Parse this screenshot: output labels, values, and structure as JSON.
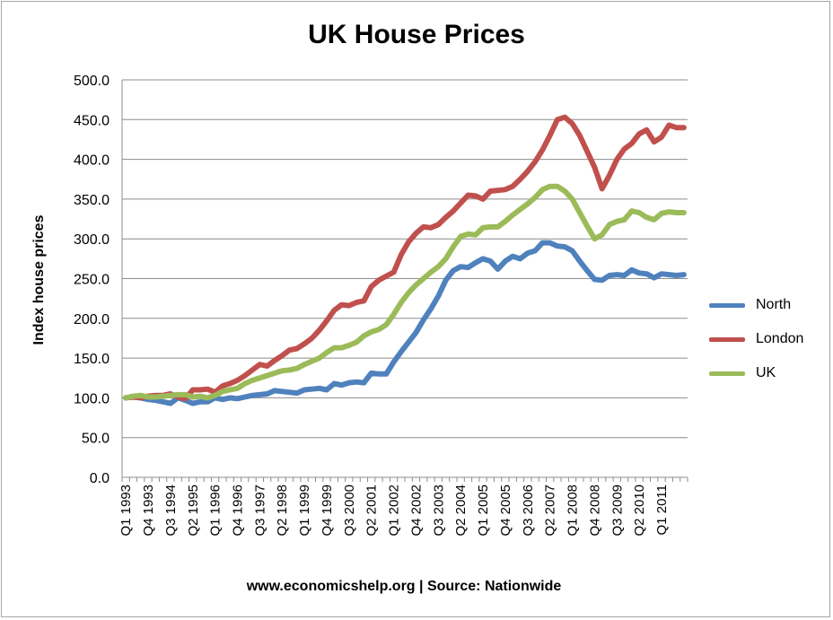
{
  "chart_data": {
    "type": "line",
    "title": "UK House Prices",
    "ylabel": "Index house prices",
    "xlabel": "www.economicshelp.org | Source: Nationwide",
    "ylim": [
      0,
      500
    ],
    "yticks": [
      "0.0",
      "50.0",
      "100.0",
      "150.0",
      "200.0",
      "250.0",
      "300.0",
      "350.0",
      "400.0",
      "450.0",
      "500.0"
    ],
    "grid": true,
    "legend": "right",
    "x": [
      "Q1 1993",
      "Q2 1993",
      "Q3 1993",
      "Q4 1993",
      "Q1 1994",
      "Q2 1994",
      "Q3 1994",
      "Q4 1994",
      "Q1 1995",
      "Q2 1995",
      "Q3 1995",
      "Q4 1995",
      "Q1 1996",
      "Q2 1996",
      "Q3 1996",
      "Q4 1996",
      "Q1 1997",
      "Q2 1997",
      "Q3 1997",
      "Q4 1997",
      "Q1 1998",
      "Q2 1998",
      "Q3 1998",
      "Q4 1998",
      "Q1 1999",
      "Q2 1999",
      "Q3 1999",
      "Q4 1999",
      "Q1 2000",
      "Q2 2000",
      "Q3 2000",
      "Q4 2000",
      "Q1 2001",
      "Q2 2001",
      "Q3 2001",
      "Q4 2001",
      "Q1 2002",
      "Q2 2002",
      "Q3 2002",
      "Q4 2002",
      "Q1 2003",
      "Q2 2003",
      "Q3 2003",
      "Q4 2003",
      "Q1 2004",
      "Q2 2004",
      "Q3 2004",
      "Q4 2004",
      "Q1 2005",
      "Q2 2005",
      "Q3 2005",
      "Q4 2005",
      "Q1 2006",
      "Q2 2006",
      "Q3 2006",
      "Q4 2006",
      "Q1 2007",
      "Q2 2007",
      "Q3 2007",
      "Q4 2007",
      "Q1 2008",
      "Q2 2008",
      "Q3 2008",
      "Q4 2008",
      "Q1 2009",
      "Q2 2009",
      "Q3 2009",
      "Q4 2009",
      "Q1 2010",
      "Q2 2010",
      "Q3 2010",
      "Q4 2010",
      "Q1 2011",
      "Q2 2011",
      "Q3 2011",
      "Q4 2011"
    ],
    "xtick_labels": [
      "Q1 1993",
      "Q4 1993",
      "Q3 1994",
      "Q2 1995",
      "Q1 1996",
      "Q4 1996",
      "Q3 1997",
      "Q2 1998",
      "Q1 1999",
      "Q4 1999",
      "Q3 2000",
      "Q2 2001",
      "Q1 2002",
      "Q4 2002",
      "Q3 2003",
      "Q2 2004",
      "Q1 2005",
      "Q4 2005",
      "Q3 2006",
      "Q2 2007",
      "Q1 2008",
      "Q4 2008",
      "Q3 2009",
      "Q2 2010",
      "Q1 2011"
    ],
    "series": [
      {
        "name": "North",
        "color": "#4f81bd",
        "values": [
          100,
          101,
          100,
          98,
          97,
          95,
          93,
          100,
          97,
          93,
          95,
          95,
          100,
          98,
          100,
          99,
          101,
          103,
          104,
          105,
          109,
          108,
          107,
          106,
          110,
          111,
          112,
          110,
          118,
          116,
          119,
          120,
          119,
          131,
          130,
          130,
          145,
          158,
          170,
          182,
          198,
          212,
          228,
          248,
          260,
          265,
          264,
          270,
          275,
          272,
          262,
          272,
          278,
          275,
          282,
          285,
          295,
          295,
          291,
          290,
          285,
          272,
          260,
          249,
          248,
          254,
          255,
          254,
          261,
          257,
          256,
          251,
          256,
          255,
          254,
          255
        ]
      },
      {
        "name": "London",
        "color": "#c0504d",
        "values": [
          100,
          101,
          100,
          102,
          103,
          103,
          105,
          101,
          99,
          110,
          110,
          111,
          107,
          115,
          118,
          122,
          128,
          135,
          142,
          140,
          147,
          153,
          160,
          162,
          168,
          175,
          185,
          197,
          210,
          217,
          216,
          220,
          222,
          240,
          248,
          253,
          258,
          280,
          296,
          307,
          315,
          314,
          318,
          327,
          335,
          345,
          355,
          354,
          350,
          360,
          361,
          362,
          366,
          375,
          385,
          397,
          412,
          430,
          450,
          453,
          445,
          430,
          410,
          390,
          363,
          380,
          400,
          413,
          420,
          432,
          437,
          422,
          428,
          443,
          440,
          440
        ]
      },
      {
        "name": "UK",
        "color": "#9bbb59",
        "values": [
          100,
          102,
          103,
          101,
          101,
          102,
          103,
          104,
          104,
          101,
          102,
          100,
          103,
          108,
          110,
          112,
          118,
          122,
          125,
          128,
          131,
          134,
          135,
          137,
          142,
          146,
          150,
          157,
          163,
          163,
          166,
          170,
          178,
          183,
          186,
          192,
          205,
          220,
          232,
          242,
          250,
          258,
          265,
          275,
          290,
          303,
          306,
          305,
          314,
          315,
          315,
          322,
          330,
          337,
          344,
          352,
          362,
          366,
          366,
          360,
          350,
          333,
          316,
          300,
          305,
          318,
          322,
          324,
          335,
          333,
          327,
          324,
          332,
          334,
          333,
          333
        ]
      }
    ]
  }
}
